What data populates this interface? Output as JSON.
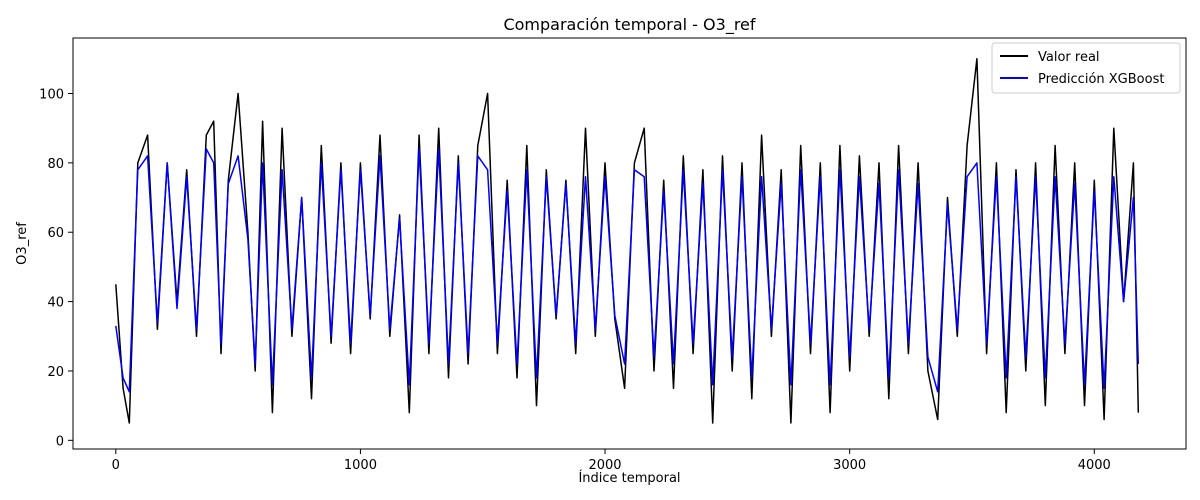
{
  "chart_data": {
    "type": "line",
    "title": "Comparación temporal - O3_ref",
    "xlabel": "Índice temporal",
    "ylabel": "O3_ref",
    "xlim": [
      -175,
      4375
    ],
    "ylim": [
      -2.5,
      116
    ],
    "xticks": [
      0,
      1000,
      2000,
      3000,
      4000
    ],
    "yticks": [
      0,
      20,
      40,
      60,
      80,
      100
    ],
    "grid": false,
    "legend": "top-right",
    "series": [
      {
        "name": "Valor real",
        "color": "#000000",
        "x": [
          0,
          30,
          55,
          90,
          130,
          170,
          210,
          250,
          290,
          330,
          370,
          400,
          430,
          460,
          500,
          540,
          570,
          600,
          640,
          680,
          720,
          760,
          800,
          840,
          880,
          920,
          960,
          1000,
          1040,
          1080,
          1120,
          1160,
          1200,
          1240,
          1280,
          1320,
          1360,
          1400,
          1440,
          1480,
          1520,
          1560,
          1600,
          1640,
          1680,
          1720,
          1760,
          1800,
          1840,
          1880,
          1920,
          1960,
          2000,
          2040,
          2080,
          2120,
          2160,
          2200,
          2240,
          2280,
          2320,
          2360,
          2400,
          2440,
          2480,
          2520,
          2560,
          2600,
          2640,
          2680,
          2720,
          2760,
          2800,
          2840,
          2880,
          2920,
          2960,
          3000,
          3040,
          3080,
          3120,
          3160,
          3200,
          3240,
          3280,
          3320,
          3360,
          3400,
          3440,
          3480,
          3520,
          3560,
          3600,
          3640,
          3680,
          3720,
          3760,
          3800,
          3840,
          3880,
          3920,
          3960,
          4000,
          4040,
          4080,
          4120,
          4160,
          4180
        ],
        "y": [
          45,
          15,
          5,
          80,
          88,
          32,
          80,
          40,
          78,
          30,
          88,
          92,
          25,
          75,
          100,
          60,
          20,
          92,
          8,
          90,
          30,
          70,
          12,
          85,
          28,
          80,
          25,
          80,
          35,
          88,
          30,
          65,
          8,
          88,
          25,
          90,
          18,
          82,
          22,
          85,
          100,
          25,
          75,
          18,
          85,
          10,
          78,
          35,
          75,
          25,
          90,
          30,
          80,
          35,
          15,
          80,
          90,
          20,
          75,
          15,
          82,
          25,
          78,
          5,
          82,
          20,
          80,
          12,
          88,
          30,
          78,
          5,
          85,
          25,
          80,
          8,
          85,
          20,
          82,
          30,
          80,
          12,
          85,
          25,
          80,
          20,
          6,
          70,
          30,
          85,
          110,
          25,
          80,
          8,
          78,
          20,
          80,
          10,
          85,
          25,
          80,
          10,
          75,
          6,
          90,
          40,
          80,
          8
        ]
      },
      {
        "name": "Predicción XGBoost",
        "color": "#0000ff",
        "x": [
          0,
          30,
          55,
          90,
          130,
          170,
          210,
          250,
          290,
          330,
          370,
          400,
          430,
          460,
          500,
          540,
          570,
          600,
          640,
          680,
          720,
          760,
          800,
          840,
          880,
          920,
          960,
          1000,
          1040,
          1080,
          1120,
          1160,
          1200,
          1240,
          1280,
          1320,
          1360,
          1400,
          1440,
          1480,
          1520,
          1560,
          1600,
          1640,
          1680,
          1720,
          1760,
          1800,
          1840,
          1880,
          1920,
          1960,
          2000,
          2040,
          2080,
          2120,
          2160,
          2200,
          2240,
          2280,
          2320,
          2360,
          2400,
          2440,
          2480,
          2520,
          2560,
          2600,
          2640,
          2680,
          2720,
          2760,
          2800,
          2840,
          2880,
          2920,
          2960,
          3000,
          3040,
          3080,
          3120,
          3160,
          3200,
          3240,
          3280,
          3320,
          3360,
          3400,
          3440,
          3480,
          3520,
          3560,
          3600,
          3640,
          3680,
          3720,
          3760,
          3800,
          3840,
          3880,
          3920,
          3960,
          4000,
          4040,
          4080,
          4120,
          4160,
          4180
        ],
        "y": [
          33,
          18,
          14,
          78,
          82,
          34,
          80,
          38,
          76,
          32,
          84,
          80,
          28,
          74,
          82,
          58,
          22,
          80,
          16,
          78,
          32,
          70,
          18,
          80,
          30,
          78,
          28,
          78,
          36,
          82,
          32,
          64,
          16,
          84,
          28,
          84,
          22,
          80,
          25,
          82,
          78,
          28,
          72,
          22,
          78,
          18,
          76,
          36,
          74,
          28,
          76,
          32,
          76,
          36,
          22,
          78,
          76,
          24,
          72,
          22,
          78,
          28,
          74,
          16,
          78,
          24,
          76,
          18,
          76,
          32,
          74,
          16,
          78,
          28,
          76,
          16,
          78,
          24,
          76,
          32,
          74,
          18,
          78,
          28,
          74,
          24,
          14,
          68,
          32,
          76,
          80,
          28,
          76,
          18,
          76,
          24,
          76,
          18,
          76,
          28,
          74,
          16,
          72,
          15,
          76,
          40,
          70,
          22
        ]
      }
    ]
  }
}
